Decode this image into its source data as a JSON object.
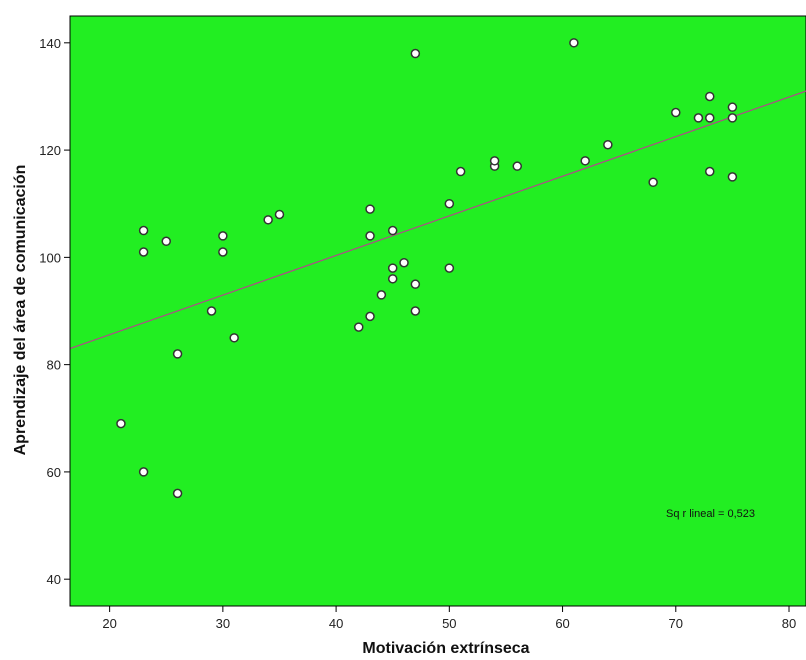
{
  "chart_data": {
    "type": "scatter",
    "xlabel": "Motivación extrínseca",
    "ylabel": "Aprendizaje del área de comunicación",
    "xlim": [
      16.5,
      81.5
    ],
    "ylim": [
      35,
      145
    ],
    "x_ticks": [
      20,
      30,
      40,
      50,
      60,
      70,
      80
    ],
    "y_ticks": [
      40,
      60,
      80,
      100,
      120,
      140
    ],
    "grid": false,
    "background_color": "#22ee22",
    "point_fill": "#ffffff",
    "point_stroke": "#333333",
    "fit_line_color": "#b04a8a",
    "points": [
      {
        "x": 21,
        "y": 69
      },
      {
        "x": 23,
        "y": 60
      },
      {
        "x": 23,
        "y": 101
      },
      {
        "x": 23,
        "y": 105
      },
      {
        "x": 25,
        "y": 103
      },
      {
        "x": 26,
        "y": 56
      },
      {
        "x": 26,
        "y": 82
      },
      {
        "x": 29,
        "y": 90
      },
      {
        "x": 30,
        "y": 101
      },
      {
        "x": 30,
        "y": 104
      },
      {
        "x": 31,
        "y": 85
      },
      {
        "x": 34,
        "y": 107
      },
      {
        "x": 35,
        "y": 108
      },
      {
        "x": 42,
        "y": 87
      },
      {
        "x": 43,
        "y": 89
      },
      {
        "x": 43,
        "y": 104
      },
      {
        "x": 43,
        "y": 109
      },
      {
        "x": 44,
        "y": 93
      },
      {
        "x": 45,
        "y": 96
      },
      {
        "x": 45,
        "y": 98
      },
      {
        "x": 45,
        "y": 105
      },
      {
        "x": 46,
        "y": 99
      },
      {
        "x": 47,
        "y": 90
      },
      {
        "x": 47,
        "y": 95
      },
      {
        "x": 47,
        "y": 138
      },
      {
        "x": 50,
        "y": 98
      },
      {
        "x": 50,
        "y": 110
      },
      {
        "x": 51,
        "y": 116
      },
      {
        "x": 54,
        "y": 117
      },
      {
        "x": 54,
        "y": 118
      },
      {
        "x": 56,
        "y": 117
      },
      {
        "x": 61,
        "y": 140
      },
      {
        "x": 62,
        "y": 118
      },
      {
        "x": 64,
        "y": 121
      },
      {
        "x": 68,
        "y": 114
      },
      {
        "x": 70,
        "y": 127
      },
      {
        "x": 72,
        "y": 126
      },
      {
        "x": 73,
        "y": 116
      },
      {
        "x": 73,
        "y": 126
      },
      {
        "x": 73,
        "y": 130
      },
      {
        "x": 75,
        "y": 115
      },
      {
        "x": 75,
        "y": 126
      },
      {
        "x": 75,
        "y": 128
      }
    ],
    "fit_line": {
      "x": [
        16.5,
        81.5
      ],
      "y": [
        83.0,
        131.0
      ]
    },
    "annotation": "Sq r lineal = 0,523"
  }
}
